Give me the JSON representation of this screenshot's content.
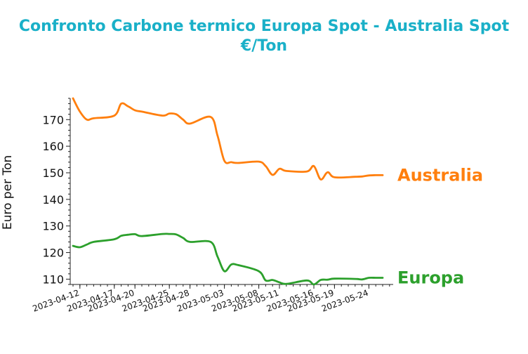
{
  "chart_data": {
    "type": "line",
    "title": "Confronto Carbone termico Europa Spot - Australia Spot",
    "subtitle": "€/Ton",
    "ylabel": "Euro per Ton",
    "xlabel": "",
    "ylim": [
      108,
      178
    ],
    "yticks": [
      110,
      120,
      130,
      140,
      150,
      160,
      170
    ],
    "x_tick_labels": [
      "2023-04-12",
      "2023-04-17",
      "2023-04-20",
      "2023-04-25",
      "2023-04-28",
      "2023-05-03",
      "2023-05-08",
      "2023-05-11",
      "2023-05-16",
      "2023-05-19",
      "2023-05-24"
    ],
    "x": [
      "2023-04-11",
      "2023-04-12",
      "2023-04-13",
      "2023-04-14",
      "2023-04-17",
      "2023-04-18",
      "2023-04-19",
      "2023-04-20",
      "2023-04-21",
      "2023-04-24",
      "2023-04-25",
      "2023-04-26",
      "2023-04-27",
      "2023-04-28",
      "2023-05-01",
      "2023-05-02",
      "2023-05-03",
      "2023-05-04",
      "2023-05-05",
      "2023-05-08",
      "2023-05-09",
      "2023-05-10",
      "2023-05-11",
      "2023-05-12",
      "2023-05-15",
      "2023-05-16",
      "2023-05-17",
      "2023-05-18",
      "2023-05-19",
      "2023-05-22",
      "2023-05-23",
      "2023-05-24",
      "2023-05-25",
      "2023-05-26"
    ],
    "series": [
      {
        "name": "Australia",
        "color": "#ff7f0e",
        "values": [
          178.0,
          173.0,
          170.0,
          170.5,
          171.5,
          176.0,
          175.0,
          173.5,
          173.0,
          171.5,
          172.3,
          172.0,
          170.0,
          168.5,
          171.0,
          164.0,
          154.5,
          154.0,
          153.7,
          154.2,
          152.5,
          149.2,
          151.5,
          150.7,
          150.5,
          152.5,
          147.5,
          150.2,
          148.3,
          148.5,
          148.6,
          149.0,
          149.1,
          149.1
        ]
      },
      {
        "name": "Europa",
        "color": "#2ca02c",
        "values": [
          122.5,
          122.0,
          123.0,
          124.0,
          125.0,
          126.3,
          126.7,
          126.9,
          126.2,
          127.0,
          127.0,
          126.8,
          125.5,
          124.0,
          124.0,
          118.5,
          113.0,
          115.5,
          115.3,
          113.0,
          109.5,
          109.7,
          108.8,
          108.2,
          109.5,
          108.0,
          109.7,
          109.8,
          110.2,
          110.1,
          109.9,
          110.5,
          110.5,
          110.5
        ]
      }
    ]
  }
}
